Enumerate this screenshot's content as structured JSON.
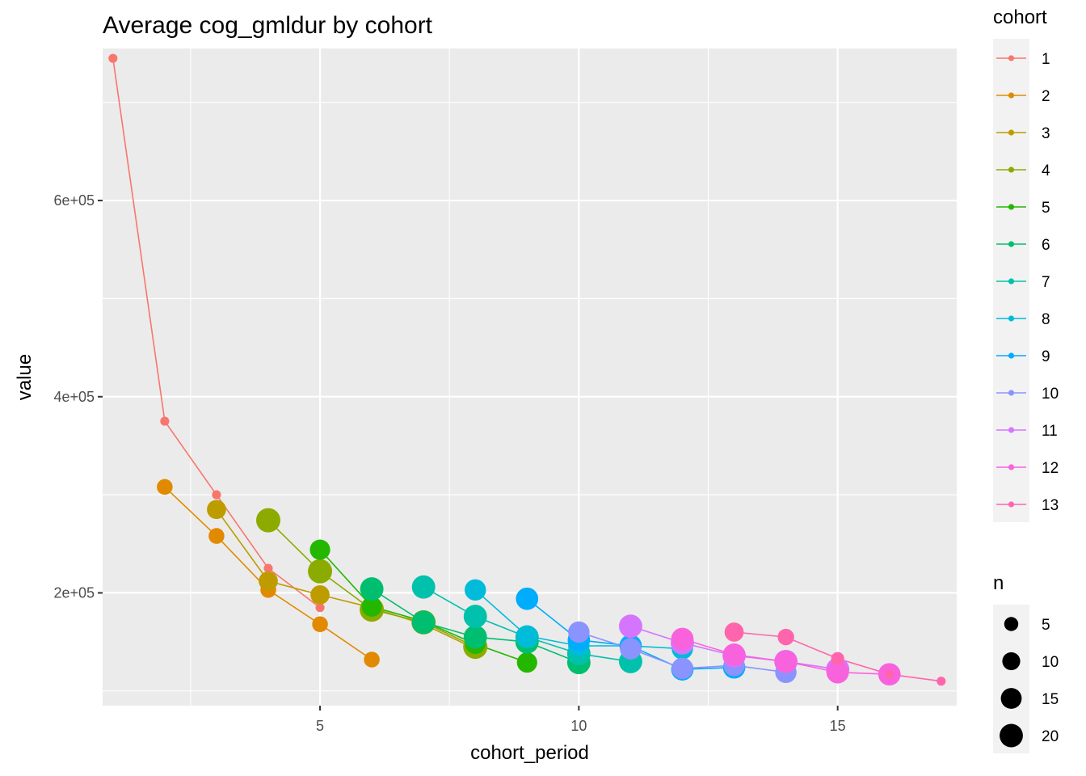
{
  "chart_data": {
    "type": "line",
    "title": "Average cog_gmldur by cohort",
    "xlabel": "cohort_period",
    "ylabel": "value",
    "xlim": [
      0.8,
      17.3
    ],
    "ylim": [
      85000,
      755000
    ],
    "x_ticks": [
      5,
      10,
      15
    ],
    "x_tick_labels": [
      "5",
      "10",
      "15"
    ],
    "y_ticks": [
      200000,
      400000,
      600000
    ],
    "y_tick_labels": [
      "2e+05",
      "4e+05",
      "6e+05"
    ],
    "grid": true,
    "legend_position": "right",
    "colors": [
      "#F8766D",
      "#E18A00",
      "#BE9C00",
      "#8CAB00",
      "#24B700",
      "#00BE70",
      "#00C1AB",
      "#00BBDA",
      "#00ACFC",
      "#8B93FF",
      "#D575FE",
      "#F962DD",
      "#FF65AC"
    ],
    "legend_color": {
      "title": "cohort",
      "entries": [
        "1",
        "2",
        "3",
        "4",
        "5",
        "6",
        "7",
        "8",
        "9",
        "10",
        "11",
        "12",
        "13"
      ]
    },
    "legend_size": {
      "title": "n",
      "entries": [
        "5",
        "10",
        "15",
        "20"
      ],
      "values": [
        5,
        10,
        15,
        20
      ]
    },
    "series": [
      {
        "name": "1",
        "x": [
          1,
          2,
          3,
          4,
          5
        ],
        "y": [
          745000,
          375000,
          300000,
          225000,
          185000
        ],
        "n": [
          1,
          1,
          1,
          1,
          1
        ]
      },
      {
        "name": "2",
        "x": [
          2,
          3,
          4,
          5,
          6
        ],
        "y": [
          308000,
          258000,
          203000,
          168000,
          132000
        ],
        "n": [
          7,
          7,
          7,
          7,
          7
        ]
      },
      {
        "name": "3",
        "x": [
          3,
          4,
          5,
          6,
          7,
          8
        ],
        "y": [
          285000,
          212000,
          198000,
          185000,
          168000,
          143000
        ],
        "n": [
          12,
          12,
          12,
          12,
          12,
          12
        ]
      },
      {
        "name": "4",
        "x": [
          4,
          5,
          6,
          7,
          8
        ],
        "y": [
          274000,
          222000,
          183000,
          170000,
          145000
        ],
        "n": [
          22,
          22,
          22,
          22,
          22
        ]
      },
      {
        "name": "5",
        "x": [
          5,
          6,
          7,
          8,
          9
        ],
        "y": [
          244000,
          186000,
          171000,
          148000,
          129000
        ],
        "n": [
          14,
          14,
          14,
          14,
          14
        ]
      },
      {
        "name": "6",
        "x": [
          6,
          7,
          8,
          9,
          10
        ],
        "y": [
          204000,
          170000,
          155000,
          150000,
          129000
        ],
        "n": [
          20,
          20,
          20,
          20,
          20
        ]
      },
      {
        "name": "7",
        "x": [
          7,
          8,
          9,
          10,
          11
        ],
        "y": [
          206000,
          176000,
          155000,
          138000,
          130000
        ],
        "n": [
          20,
          20,
          20,
          20,
          20
        ]
      },
      {
        "name": "8",
        "x": [
          8,
          9,
          10,
          11,
          12
        ],
        "y": [
          203000,
          156000,
          146000,
          146000,
          143000
        ],
        "n": [
          16,
          16,
          16,
          16,
          16
        ]
      },
      {
        "name": "9",
        "x": [
          9,
          10,
          11,
          12,
          13
        ],
        "y": [
          194000,
          152000,
          146000,
          122000,
          124000
        ],
        "n": [
          18,
          18,
          18,
          18,
          18
        ]
      },
      {
        "name": "10",
        "x": [
          10,
          11,
          12,
          13,
          14
        ],
        "y": [
          160000,
          143000,
          123000,
          126000,
          119000
        ],
        "n": [
          16,
          16,
          16,
          16,
          16
        ]
      },
      {
        "name": "11",
        "x": [
          11,
          12,
          13,
          14,
          15
        ],
        "y": [
          166000,
          149000,
          136000,
          130000,
          122000
        ],
        "n": [
          20,
          20,
          20,
          20,
          20
        ]
      },
      {
        "name": "12",
        "x": [
          12,
          13,
          14,
          15,
          16
        ],
        "y": [
          153000,
          137000,
          130000,
          119000,
          117000
        ],
        "n": [
          18,
          18,
          18,
          18,
          18
        ]
      },
      {
        "name": "13",
        "x": [
          13,
          14,
          15,
          16,
          17
        ],
        "y": [
          160000,
          155000,
          133000,
          117000,
          110000
        ],
        "n": [
          12,
          8,
          4,
          1,
          1
        ]
      }
    ]
  }
}
